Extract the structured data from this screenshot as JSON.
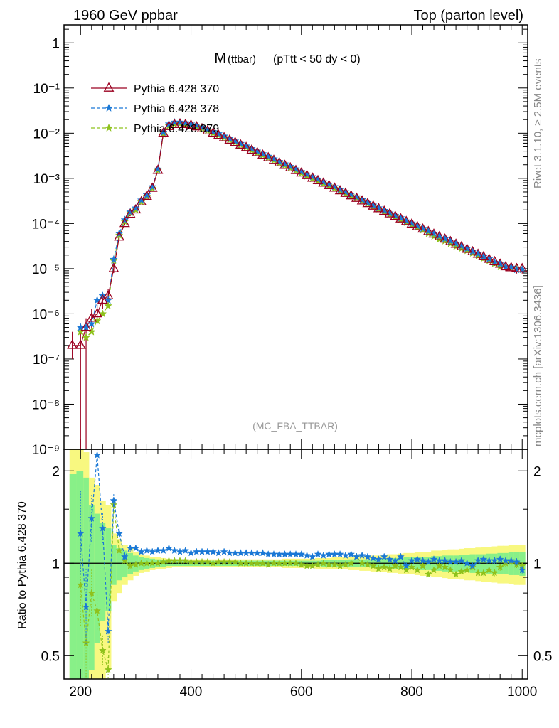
{
  "header": {
    "left": "1960 GeV ppbar",
    "right": "Top (parton level)"
  },
  "side": {
    "rivet": "Rivet 3.1.10, ≥ 2.5M events",
    "mcplots": "mcplots.cern.ch [arXiv:1306.3436]"
  },
  "plot_title": {
    "main": "M",
    "sub": "(ttbar)",
    "cut": "(pTtt < 50 dy < 0)"
  },
  "analysis_tag": "(MC_FBA_TTBAR)",
  "ratio_ylabel": "Ratio to Pythia 6.428 370",
  "colors": {
    "s370": "#9b0020",
    "s378": "#1a78d6",
    "s379": "#8fc21c",
    "band_green": "#88f088",
    "band_yellow": "#f8f880"
  },
  "chart_data": [
    {
      "type": "line",
      "yscale": "log",
      "xlim": [
        170,
        1010
      ],
      "ylim": [
        1e-09,
        2.5
      ],
      "yticks": [
        "1",
        "10⁻¹",
        "10⁻²",
        "10⁻³",
        "10⁻⁴",
        "10⁻⁵",
        "10⁻⁶",
        "10⁻⁷",
        "10⁻⁸",
        "10⁻⁹"
      ],
      "legend_position": "top-left",
      "series": [
        {
          "name": "Pythia 6.428 370",
          "marker": "triangle-open",
          "style": "solid"
        },
        {
          "name": "Pythia 6.428 378",
          "marker": "star",
          "style": "dashed"
        },
        {
          "name": "Pythia 6.428 379",
          "marker": "star",
          "style": "dashed"
        }
      ],
      "x": [
        185,
        200,
        210,
        220,
        230,
        240,
        250,
        260,
        270,
        280,
        290,
        300,
        310,
        320,
        330,
        340,
        350,
        360,
        370,
        380,
        390,
        400,
        410,
        420,
        430,
        440,
        450,
        460,
        470,
        480,
        490,
        500,
        510,
        520,
        530,
        540,
        550,
        560,
        570,
        580,
        590,
        600,
        610,
        620,
        630,
        640,
        650,
        660,
        670,
        680,
        690,
        700,
        710,
        720,
        730,
        740,
        750,
        760,
        770,
        780,
        790,
        800,
        810,
        820,
        830,
        840,
        850,
        860,
        870,
        880,
        890,
        900,
        910,
        920,
        930,
        940,
        950,
        960,
        970,
        980,
        990,
        1000
      ],
      "y_370": [
        2e-07,
        2e-07,
        5e-07,
        8e-07,
        1e-06,
        2e-06,
        2.5e-06,
        1e-05,
        5e-05,
        0.0001,
        0.00016,
        0.0002,
        0.0003,
        0.0004,
        0.0006,
        0.0015,
        0.01,
        0.014,
        0.0155,
        0.016,
        0.0155,
        0.015,
        0.0138,
        0.0125,
        0.0112,
        0.01,
        0.0089,
        0.0079,
        0.007,
        0.0062,
        0.00545,
        0.0048,
        0.0042,
        0.0037,
        0.00325,
        0.00285,
        0.0025,
        0.0022,
        0.00193,
        0.0017,
        0.00149,
        0.00131,
        0.00115,
        0.00101,
        0.00089,
        0.00078,
        0.00069,
        0.000605,
        0.00053,
        0.000465,
        0.00041,
        0.00036,
        0.000315,
        0.000276,
        0.000242,
        0.000212,
        0.000186,
        0.000163,
        0.000143,
        0.000126,
        0.00011,
        9.7e-05,
        8.5e-05,
        7.5e-05,
        6.6e-05,
        5.8e-05,
        5.1e-05,
        4.5e-05,
        3.95e-05,
        3.47e-05,
        3.05e-05,
        2.68e-05,
        2.36e-05,
        2.08e-05,
        1.83e-05,
        1.61e-05,
        1.42e-05,
        1.25e-05,
        1.1e-05,
        1.05e-05,
        1e-05,
        1e-05
      ],
      "y_lo_370": [
        1e-07,
        1e-09,
        1e-09,
        4e-07,
        6e-07,
        1.3e-06,
        1.6e-06,
        8e-06,
        4.3e-05,
        9e-05,
        0.000145,
        0.000185,
        0.00028,
        0.00037,
        0.00056,
        0.0014,
        0.0096,
        0.0136,
        0.015,
        0.0155,
        0.015,
        0.0145,
        0.0134,
        0.012,
        0.0108,
        0.0097,
        0.0086,
        0.0076,
        0.0068,
        0.006,
        0.0053,
        0.00465,
        0.00405,
        0.00355,
        0.0031,
        0.00275,
        0.0024,
        0.0021,
        0.00185,
        0.00163,
        0.00143,
        0.00125,
        0.0011,
        0.00097,
        0.00085,
        0.000745,
        0.000655,
        0.000575,
        0.0005,
        0.00044,
        0.000385,
        0.00034,
        0.000295,
        0.000258,
        0.000226,
        0.000197,
        0.000172,
        0.00015,
        0.000131,
        0.000115,
        0.0001,
        8.7e-05,
        7.6e-05,
        6.7e-05,
        5.8e-05,
        5.1e-05,
        4.4e-05,
        3.9e-05,
        3.4e-05,
        2.95e-05,
        2.6e-05,
        2.25e-05,
        1.97e-05,
        1.72e-05,
        1.5e-05,
        1.3e-05,
        1.15e-05,
        1e-05,
        8.8e-06,
        8.3e-06,
        7.8e-06,
        7.8e-06
      ],
      "y_hi_370": [
        4e-07,
        6e-07,
        8e-07,
        1.3e-06,
        1.6e-06,
        3e-06,
        3.5e-06,
        1.2e-05,
        5.8e-05,
        0.00011,
        0.000175,
        0.000215,
        0.00032,
        0.00043,
        0.00064,
        0.0016,
        0.0104,
        0.0144,
        0.016,
        0.0165,
        0.016,
        0.0155,
        0.0142,
        0.013,
        0.0116,
        0.0103,
        0.0092,
        0.0082,
        0.0072,
        0.0064,
        0.0056,
        0.00495,
        0.00435,
        0.00385,
        0.0034,
        0.00295,
        0.0026,
        0.0023,
        0.00201,
        0.00177,
        0.00155,
        0.00137,
        0.0012,
        0.00105,
        0.00093,
        0.000815,
        0.000725,
        0.000635,
        0.00056,
        0.00049,
        0.000435,
        0.00038,
        0.000335,
        0.000294,
        0.000258,
        0.000227,
        0.0002,
        0.000176,
        0.000155,
        0.000137,
        0.00012,
        0.000107,
        9.4e-05,
        8.3e-05,
        7.4e-05,
        6.5e-05,
        5.8e-05,
        5.1e-05,
        4.5e-05,
        4e-05,
        3.5e-05,
        3.11e-05,
        2.75e-05,
        2.44e-05,
        2.16e-05,
        1.92e-05,
        1.69e-05,
        1.5e-05,
        1.32e-05,
        1.27e-05,
        1.22e-05,
        1.22e-05
      ],
      "y_378": [
        null,
        5e-07,
        5e-07,
        6e-07,
        2e-06,
        2.5e-06,
        2e-06,
        1.6e-05,
        6e-05,
        0.00012,
        0.00018,
        0.00022,
        0.00033,
        0.00043,
        0.00065,
        0.0016,
        0.0105,
        0.016,
        0.0175,
        0.0175,
        0.017,
        0.016,
        0.015,
        0.0136,
        0.0122,
        0.0109,
        0.0097,
        0.0086,
        0.0076,
        0.0067,
        0.0059,
        0.0052,
        0.00455,
        0.004,
        0.0035,
        0.00308,
        0.0027,
        0.00237,
        0.00208,
        0.00183,
        0.00161,
        0.00141,
        0.00124,
        0.00109,
        0.00096,
        0.00084,
        0.000745,
        0.000655,
        0.00057,
        0.000505,
        0.000445,
        0.00039,
        0.000335,
        0.00029,
        0.000255,
        0.000222,
        0.000195,
        0.000171,
        0.00015,
        0.000134,
        0.000114,
        0.000102,
        8.9e-05,
        7.8e-05,
        6.8e-05,
        6e-05,
        5.3e-05,
        4.6e-05,
        4.1e-05,
        3.6e-05,
        3.2e-05,
        2.8e-05,
        2.4e-05,
        2.15e-05,
        1.85e-05,
        1.65e-05,
        1.38e-05,
        1.27e-05,
        1.1e-05,
        1.08e-05,
        9.5e-06,
        9.5e-06
      ],
      "y_379": [
        null,
        4e-07,
        3e-07,
        4e-07,
        7e-07,
        1e-06,
        1.5e-06,
        1.5e-05,
        5.5e-05,
        0.00011,
        0.00017,
        0.0002,
        0.0003,
        0.0004,
        0.0006,
        0.0015,
        0.0095,
        0.0145,
        0.016,
        0.0162,
        0.0157,
        0.0152,
        0.014,
        0.0127,
        0.0114,
        0.0101,
        0.009,
        0.008,
        0.0071,
        0.0063,
        0.0055,
        0.00485,
        0.0042,
        0.0037,
        0.00325,
        0.00285,
        0.0025,
        0.0022,
        0.00193,
        0.0017,
        0.00149,
        0.0013,
        0.00112,
        0.00098,
        0.00087,
        0.00077,
        0.00068,
        0.0006,
        0.00052,
        0.00046,
        0.00041,
        0.000365,
        0.000315,
        0.000275,
        0.000238,
        0.000208,
        0.00018,
        0.00016,
        0.00014,
        0.000123,
        0.000105,
        9.3e-05,
        8.2e-05,
        7.2e-05,
        6e-05,
        5.2e-05,
        4.5e-05,
        4.1e-05,
        3.6e-05,
        3.1e-05,
        2.8e-05,
        2.5e-05,
        2.2e-05,
        1.9e-05,
        1.7e-05,
        1.5e-05,
        1.3e-05,
        1.1e-05,
        1.1e-05,
        1.05e-05,
        9.8e-06,
        9.5e-06
      ]
    },
    {
      "type": "line",
      "yscale": "log",
      "xlim": [
        170,
        1010
      ],
      "ylim": [
        0.42,
        2.35
      ],
      "xticks": [
        200,
        400,
        600,
        800,
        1000
      ],
      "yticks": [
        0.5,
        1,
        2
      ],
      "ylabel": "Ratio to Pythia 6.428 370",
      "reference": 1,
      "x": [
        185,
        200,
        210,
        220,
        230,
        240,
        250,
        260,
        270,
        280,
        290,
        300,
        310,
        320,
        330,
        340,
        350,
        360,
        370,
        380,
        390,
        400,
        410,
        420,
        430,
        440,
        450,
        460,
        470,
        480,
        490,
        500,
        510,
        520,
        530,
        540,
        550,
        560,
        570,
        580,
        590,
        600,
        610,
        620,
        630,
        640,
        650,
        660,
        670,
        680,
        690,
        700,
        710,
        720,
        730,
        740,
        750,
        760,
        770,
        780,
        790,
        800,
        810,
        820,
        830,
        840,
        850,
        860,
        870,
        880,
        890,
        900,
        910,
        920,
        930,
        940,
        950,
        960,
        970,
        980,
        990,
        1000
      ],
      "band_green_half": [
        0.95,
        1.0,
        0.9,
        0.55,
        0.45,
        0.35,
        0.3,
        0.15,
        0.12,
        0.1,
        0.08,
        0.06,
        0.05,
        0.04,
        0.035,
        0.03,
        0.025,
        0.02,
        0.02,
        0.02,
        0.02,
        0.02,
        0.02,
        0.02,
        0.02,
        0.02,
        0.02,
        0.02,
        0.02,
        0.02,
        0.02,
        0.02,
        0.02,
        0.02,
        0.02,
        0.02,
        0.02,
        0.02,
        0.02,
        0.02,
        0.02,
        0.02,
        0.02,
        0.02,
        0.02,
        0.025,
        0.025,
        0.025,
        0.025,
        0.025,
        0.03,
        0.03,
        0.03,
        0.03,
        0.035,
        0.035,
        0.035,
        0.04,
        0.04,
        0.04,
        0.045,
        0.045,
        0.05,
        0.05,
        0.05,
        0.055,
        0.055,
        0.06,
        0.06,
        0.06,
        0.065,
        0.065,
        0.07,
        0.07,
        0.07,
        0.075,
        0.075,
        0.08,
        0.08,
        0.085,
        0.085,
        0.09
      ],
      "band_yellow_half": [
        1.5,
        1.5,
        1.3,
        0.9,
        0.8,
        0.6,
        0.55,
        0.25,
        0.2,
        0.15,
        0.12,
        0.09,
        0.07,
        0.06,
        0.05,
        0.045,
        0.04,
        0.035,
        0.03,
        0.03,
        0.03,
        0.03,
        0.03,
        0.03,
        0.03,
        0.03,
        0.03,
        0.03,
        0.03,
        0.03,
        0.03,
        0.03,
        0.03,
        0.03,
        0.03,
        0.03,
        0.03,
        0.03,
        0.035,
        0.035,
        0.035,
        0.035,
        0.035,
        0.035,
        0.04,
        0.04,
        0.04,
        0.045,
        0.045,
        0.045,
        0.05,
        0.05,
        0.055,
        0.055,
        0.06,
        0.06,
        0.065,
        0.07,
        0.07,
        0.075,
        0.08,
        0.08,
        0.085,
        0.09,
        0.09,
        0.1,
        0.1,
        0.105,
        0.11,
        0.11,
        0.115,
        0.12,
        0.12,
        0.125,
        0.13,
        0.13,
        0.135,
        0.14,
        0.14,
        0.145,
        0.15,
        0.15
      ],
      "series": [
        {
          "name": "Pythia 6.428 378",
          "values": [
            null,
            1.25,
            0.72,
            1.4,
            2.25,
            1.3,
            0.6,
            1.6,
            1.25,
            1.05,
            1.12,
            1.12,
            1.09,
            1.1,
            1.09,
            1.1,
            1.1,
            1.12,
            1.1,
            1.09,
            1.1,
            1.08,
            1.09,
            1.09,
            1.09,
            1.09,
            1.08,
            1.09,
            1.08,
            1.08,
            1.08,
            1.08,
            1.08,
            1.08,
            1.08,
            1.07,
            1.07,
            1.07,
            1.07,
            1.07,
            1.07,
            1.07,
            1.06,
            1.05,
            1.07,
            1.06,
            1.07,
            1.07,
            1.07,
            1.06,
            1.07,
            1.05,
            1.06,
            1.05,
            1.04,
            1.03,
            1.05,
            1.03,
            1.02,
            1.05,
            0.98,
            1.02,
            1.03,
            1.02,
            1.01,
            1.03,
            1.02,
            1.02,
            1.01,
            1.01,
            1.02,
            1.0,
            0.98,
            1.02,
            1.03,
            1.02,
            1.02,
            1.03,
            1.02,
            1.02,
            1.01,
            0.95
          ]
        },
        {
          "name": "Pythia 6.428 379",
          "values": [
            null,
            0.85,
            0.55,
            0.8,
            0.7,
            0.52,
            0.45,
            1.55,
            1.1,
            1.02,
            0.98,
            0.99,
            1.0,
            1.0,
            1.0,
            1.0,
            1.01,
            1.02,
            1.02,
            1.02,
            1.02,
            1.01,
            1.01,
            1.01,
            1.01,
            1.0,
            1.01,
            1.01,
            1.01,
            1.01,
            1.0,
            1.0,
            1.0,
            1.0,
            1.0,
            0.99,
            1.0,
            1.0,
            1.0,
            1.0,
            1.0,
            0.99,
            0.98,
            0.98,
            0.99,
            1.0,
            0.99,
            0.99,
            0.98,
            0.99,
            1.0,
            1.05,
            1.0,
            0.99,
            0.98,
            0.96,
            0.97,
            0.96,
            0.98,
            0.97,
            0.95,
            0.97,
            0.95,
            0.98,
            0.92,
            0.95,
            0.98,
            0.97,
            0.95,
            0.92,
            0.94,
            0.95,
            0.97,
            0.93,
            0.93,
            0.95,
            0.93,
            0.97,
            1.0,
            1.01,
            0.99,
            0.98
          ]
        }
      ]
    }
  ]
}
